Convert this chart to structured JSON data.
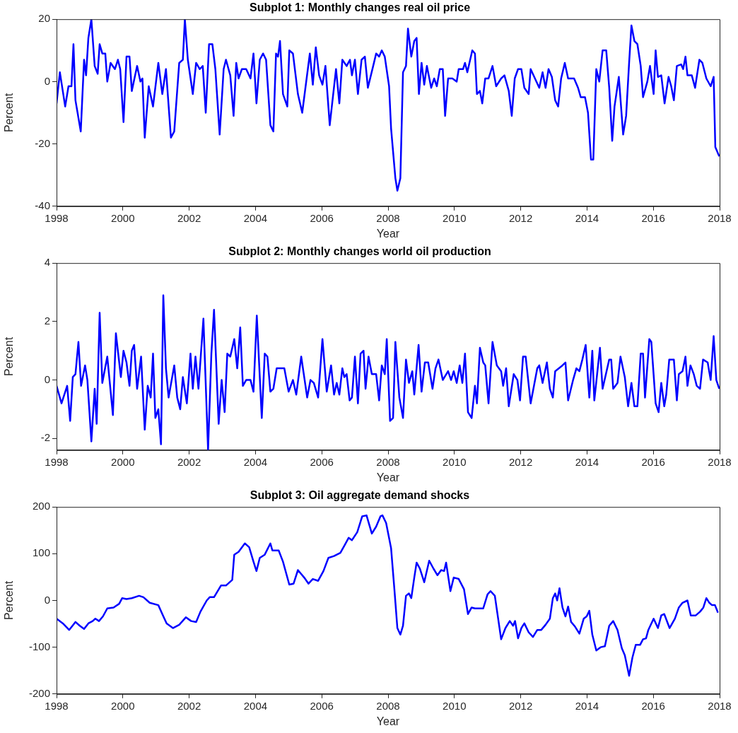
{
  "chart_data": [
    {
      "type": "line",
      "title": "Subplot 1: Monthly changes real oil price",
      "xlabel": "Year",
      "ylabel": "Percent",
      "color": "#0000ff",
      "xlim": [
        1998,
        2018
      ],
      "xticks": [
        1998,
        2000,
        2002,
        2004,
        2006,
        2008,
        2010,
        2012,
        2014,
        2016,
        2018
      ],
      "ylim": [
        -40,
        20
      ],
      "yticks": [
        -40,
        -20,
        0,
        20
      ],
      "x": [
        1998.0,
        1998.1,
        1998.26,
        1998.36,
        1998.45,
        1998.51,
        1998.57,
        1998.73,
        1998.83,
        1998.89,
        1998.96,
        1999.05,
        1999.15,
        1999.24,
        1999.3,
        1999.38,
        1999.47,
        1999.53,
        1999.63,
        1999.76,
        1999.85,
        1999.92,
        2000.02,
        2000.11,
        2000.2,
        2000.27,
        2000.43,
        2000.53,
        2000.59,
        2000.66,
        2000.78,
        2000.91,
        2001.07,
        2001.19,
        2001.3,
        2001.45,
        2001.55,
        2001.7,
        2001.81,
        2001.87,
        2001.96,
        2002.11,
        2002.21,
        2002.32,
        2002.41,
        2002.5,
        2002.6,
        2002.7,
        2002.79,
        2002.92,
        2003.04,
        2003.11,
        2003.24,
        2003.34,
        2003.42,
        2003.49,
        2003.59,
        2003.72,
        2003.85,
        2003.94,
        2004.03,
        2004.13,
        2004.23,
        2004.32,
        2004.45,
        2004.54,
        2004.62,
        2004.68,
        2004.74,
        2004.83,
        2004.96,
        2005.02,
        2005.13,
        2005.28,
        2005.41,
        2005.64,
        2005.73,
        2005.82,
        2005.92,
        2006.02,
        2006.11,
        2006.24,
        2006.43,
        2006.53,
        2006.62,
        2006.75,
        2006.85,
        2006.91,
        2007.0,
        2007.09,
        2007.2,
        2007.3,
        2007.39,
        2007.55,
        2007.64,
        2007.73,
        2007.81,
        2007.9,
        2008.03,
        2008.09,
        2008.22,
        2008.28,
        2008.37,
        2008.45,
        2008.54,
        2008.6,
        2008.7,
        2008.79,
        2008.86,
        2008.93,
        2009.01,
        2009.09,
        2009.17,
        2009.3,
        2009.39,
        2009.47,
        2009.56,
        2009.65,
        2009.72,
        2009.81,
        2009.94,
        2010.07,
        2010.13,
        2010.26,
        2010.32,
        2010.39,
        2010.54,
        2010.62,
        2010.68,
        2010.77,
        2010.84,
        2010.93,
        2011.03,
        2011.15,
        2011.26,
        2011.41,
        2011.51,
        2011.64,
        2011.73,
        2011.82,
        2011.92,
        2012.02,
        2012.11,
        2012.24,
        2012.3,
        2012.43,
        2012.56,
        2012.66,
        2012.75,
        2012.84,
        2012.94,
        2013.04,
        2013.13,
        2013.22,
        2013.33,
        2013.43,
        2013.61,
        2013.73,
        2013.81,
        2013.94,
        2014.03,
        2014.12,
        2014.19,
        2014.28,
        2014.37,
        2014.47,
        2014.58,
        2014.67,
        2014.76,
        2014.83,
        2014.96,
        2015.09,
        2015.18,
        2015.27,
        2015.34,
        2015.43,
        2015.52,
        2015.62,
        2015.69,
        2015.82,
        2015.9,
        2016.01,
        2016.07,
        2016.14,
        2016.24,
        2016.34,
        2016.46,
        2016.54,
        2016.62,
        2016.71,
        2016.84,
        2016.9,
        2016.97,
        2017.03,
        2017.16,
        2017.26,
        2017.31,
        2017.39,
        2017.48,
        2017.6,
        2017.73,
        2017.82,
        2017.87,
        2017.99
      ],
      "values": [
        -7,
        3,
        -8,
        -1.5,
        -1.5,
        12,
        -6,
        -16,
        7,
        2,
        14,
        20,
        5,
        2.5,
        12,
        9,
        9,
        0,
        6,
        4,
        7,
        4,
        -13,
        8,
        8,
        -3,
        5,
        0,
        1,
        -18,
        -1.5,
        -8,
        6,
        -4,
        4,
        -18,
        -16,
        6,
        7,
        20,
        7,
        -4,
        6,
        4,
        5,
        -10,
        12,
        12,
        4,
        -17,
        4,
        7,
        2,
        -11,
        6,
        1,
        4,
        4,
        1,
        9,
        -7,
        7,
        9,
        7,
        -14,
        -16,
        9,
        8,
        13,
        -4,
        -8,
        10,
        9,
        -4,
        -10,
        9,
        -1,
        11,
        2,
        -1,
        5,
        -14,
        4,
        -7,
        7,
        5,
        7,
        2,
        7,
        -4,
        7,
        8,
        -2,
        5,
        9,
        8,
        10,
        8,
        -1.5,
        -15,
        -31,
        -35,
        -31,
        3,
        5,
        17,
        8,
        13,
        14,
        -4,
        6,
        -1,
        5,
        -2,
        1,
        -1.5,
        4,
        4,
        -11,
        1,
        1,
        0,
        4,
        4,
        6,
        3,
        10,
        9,
        -4,
        -3,
        -7,
        1,
        1,
        5,
        -1.5,
        1,
        2,
        -3,
        -11,
        1,
        4,
        4,
        -2,
        -4,
        4,
        1,
        -2,
        3,
        -2,
        4,
        1.5,
        -6,
        -8,
        1,
        6,
        1,
        1,
        -2,
        -5,
        -5,
        -10,
        -25,
        -25,
        4,
        0,
        10,
        10,
        -2,
        -19,
        -8,
        1.5,
        -17,
        -11,
        6,
        18,
        13,
        12,
        5,
        -5,
        0,
        5,
        -4,
        10,
        1.5,
        2,
        -7,
        1.5,
        -1.5,
        -6,
        5,
        5.5,
        4,
        8,
        2,
        2,
        -2,
        1.5,
        7,
        6,
        1,
        -1.5,
        1.5,
        -21,
        -24
      ]
    },
    {
      "type": "line",
      "title": "Subplot 2: Monthly changes world oil production",
      "xlabel": "Year",
      "ylabel": "Percent",
      "color": "#0000ff",
      "xlim": [
        1998,
        2018
      ],
      "xticks": [
        1998,
        2000,
        2002,
        2004,
        2006,
        2008,
        2010,
        2012,
        2014,
        2016,
        2018
      ],
      "ylim": [
        -2.4,
        4
      ],
      "yticks": [
        -2,
        0,
        2,
        4
      ],
      "x": [
        1998.0,
        1998.15,
        1998.32,
        1998.41,
        1998.49,
        1998.57,
        1998.66,
        1998.74,
        1998.86,
        1998.93,
        1999.05,
        1999.15,
        1999.21,
        1999.3,
        1999.38,
        1999.53,
        1999.7,
        1999.79,
        1999.94,
        2000.02,
        2000.11,
        2000.2,
        2000.27,
        2000.34,
        2000.43,
        2000.55,
        2000.66,
        2000.75,
        2000.84,
        2000.91,
        2000.98,
        2001.07,
        2001.15,
        2001.22,
        2001.3,
        2001.38,
        2001.55,
        2001.64,
        2001.73,
        2001.81,
        2001.93,
        2002.04,
        2002.11,
        2002.19,
        2002.28,
        2002.43,
        2002.57,
        2002.67,
        2002.75,
        2002.89,
        2002.98,
        2003.07,
        2003.15,
        2003.24,
        2003.36,
        2003.45,
        2003.54,
        2003.62,
        2003.72,
        2003.85,
        2003.94,
        2004.04,
        2004.19,
        2004.28,
        2004.36,
        2004.45,
        2004.54,
        2004.64,
        2004.87,
        2005.0,
        2005.13,
        2005.23,
        2005.38,
        2005.56,
        2005.66,
        2005.76,
        2005.89,
        2006.02,
        2006.15,
        2006.28,
        2006.37,
        2006.45,
        2006.53,
        2006.62,
        2006.68,
        2006.75,
        2006.84,
        2006.91,
        2007.0,
        2007.09,
        2007.17,
        2007.26,
        2007.32,
        2007.41,
        2007.51,
        2007.64,
        2007.73,
        2007.81,
        2007.9,
        2007.96,
        2008.06,
        2008.15,
        2008.22,
        2008.34,
        2008.45,
        2008.54,
        2008.63,
        2008.73,
        2008.79,
        2008.92,
        2009.01,
        2009.11,
        2009.21,
        2009.34,
        2009.43,
        2009.52,
        2009.65,
        2009.81,
        2009.9,
        2009.98,
        2010.07,
        2010.16,
        2010.24,
        2010.32,
        2010.41,
        2010.52,
        2010.62,
        2010.68,
        2010.77,
        2010.87,
        2010.93,
        2011.03,
        2011.15,
        2011.28,
        2011.41,
        2011.47,
        2011.56,
        2011.64,
        2011.79,
        2011.9,
        2011.98,
        2012.07,
        2012.15,
        2012.3,
        2012.5,
        2012.56,
        2012.66,
        2012.79,
        2012.88,
        2012.97,
        2013.04,
        2013.26,
        2013.35,
        2013.43,
        2013.58,
        2013.68,
        2013.77,
        2013.86,
        2013.96,
        2014.07,
        2014.16,
        2014.22,
        2014.39,
        2014.47,
        2014.67,
        2014.73,
        2014.79,
        2014.92,
        2015.01,
        2015.14,
        2015.24,
        2015.34,
        2015.43,
        2015.52,
        2015.62,
        2015.69,
        2015.75,
        2015.88,
        2015.94,
        2016.07,
        2016.16,
        2016.24,
        2016.33,
        2016.39,
        2016.48,
        2016.62,
        2016.71,
        2016.77,
        2016.88,
        2016.97,
        2017.03,
        2017.12,
        2017.22,
        2017.31,
        2017.41,
        2017.5,
        2017.64,
        2017.73,
        2017.82,
        2017.9,
        2017.99
      ],
      "values": [
        -0.2,
        -0.8,
        -0.2,
        -1.4,
        0.1,
        0.2,
        1.3,
        -0.2,
        0.5,
        0,
        -2.1,
        -0.3,
        -1.5,
        2.3,
        -0.1,
        0.8,
        -1.2,
        1.6,
        0.1,
        1,
        0.6,
        -0.2,
        1,
        1.2,
        -0.3,
        0.8,
        -1.7,
        -0.2,
        -0.6,
        0.9,
        -1.3,
        -1,
        -2.2,
        2.9,
        0.4,
        -0.6,
        0.5,
        -0.6,
        -1,
        0.1,
        -0.8,
        0.9,
        -0.3,
        0.8,
        -0.3,
        2.1,
        -2.4,
        0.9,
        2.4,
        -1.5,
        0,
        -1.1,
        0.9,
        0.8,
        1.4,
        0.4,
        1.8,
        -0.2,
        0,
        0,
        -0.4,
        2.2,
        -1.3,
        0.9,
        0.8,
        -0.4,
        -0.3,
        0.4,
        0.4,
        -0.4,
        0,
        -0.5,
        0.8,
        -0.6,
        0,
        -0.1,
        -0.6,
        1.4,
        -0.4,
        0.5,
        -0.5,
        -0.1,
        -0.5,
        0.4,
        0.1,
        0.2,
        -0.7,
        -0.6,
        0.8,
        -0.8,
        0.9,
        1,
        -0.3,
        0.8,
        0.2,
        0.2,
        -0.7,
        0.5,
        0.2,
        1.4,
        -1.4,
        -1.3,
        1.3,
        -0.6,
        -1.3,
        0.7,
        -0.1,
        0.3,
        -0.5,
        1.2,
        -0.4,
        0.6,
        0.6,
        -0.3,
        0.4,
        0.7,
        0,
        0.3,
        0,
        0.3,
        -0.1,
        0.5,
        -0.1,
        0.9,
        -1.1,
        -1.3,
        -0.2,
        -0.8,
        1.1,
        0.6,
        0.5,
        -0.8,
        1.3,
        0.5,
        0.3,
        -0.2,
        0.4,
        -0.9,
        0.2,
        0,
        -0.7,
        0.8,
        0.8,
        -0.8,
        0.4,
        0.5,
        -0.1,
        0.6,
        -0.3,
        -0.6,
        0.3,
        0.5,
        0.6,
        -0.7,
        0,
        0.4,
        0.3,
        0.7,
        1.2,
        -0.6,
        1,
        -0.7,
        1.1,
        -0.3,
        0.7,
        0.7,
        -0.3,
        -0.1,
        0.8,
        0.1,
        -0.9,
        -0.1,
        -0.9,
        -0.9,
        0.9,
        0.9,
        -0.6,
        1.4,
        1.3,
        -0.8,
        -1.1,
        -0.1,
        -0.9,
        -0.5,
        0.7,
        0.7,
        -0.7,
        0.2,
        0.3,
        0.8,
        -0.2,
        0.5,
        0.2,
        -0.2,
        -0.3,
        0.7,
        0.6,
        0,
        1.5,
        0,
        -0.3
      ]
    },
    {
      "type": "line",
      "title": "Subplot 3: Oil aggregate demand shocks",
      "xlabel": "Year",
      "ylabel": "Percent",
      "color": "#0000ff",
      "xlim": [
        1998,
        2018
      ],
      "xticks": [
        1998,
        2000,
        2002,
        2004,
        2006,
        2008,
        2010,
        2012,
        2014,
        2016,
        2018
      ],
      "ylim": [
        -200,
        200
      ],
      "yticks": [
        -200,
        -100,
        0,
        100,
        200
      ],
      "x": [
        1998.0,
        1998.19,
        1998.38,
        1998.57,
        1998.7,
        1998.83,
        1998.96,
        1999.09,
        1999.17,
        1999.28,
        1999.4,
        1999.53,
        1999.72,
        1999.89,
        1999.98,
        2000.11,
        2000.27,
        2000.49,
        2000.62,
        2000.81,
        2001.07,
        2001.19,
        2001.32,
        2001.51,
        2001.7,
        2001.9,
        2002.06,
        2002.21,
        2002.34,
        2002.53,
        2002.62,
        2002.75,
        2002.96,
        2003.11,
        2003.3,
        2003.36,
        2003.49,
        2003.68,
        2003.81,
        2003.94,
        2004.03,
        2004.13,
        2004.28,
        2004.45,
        2004.51,
        2004.7,
        2004.83,
        2005.02,
        2005.15,
        2005.28,
        2005.47,
        2005.6,
        2005.73,
        2005.89,
        2006.05,
        2006.2,
        2006.37,
        2006.56,
        2006.68,
        2006.81,
        2006.91,
        2007.07,
        2007.22,
        2007.35,
        2007.51,
        2007.64,
        2007.77,
        2007.83,
        2007.94,
        2008.09,
        2008.19,
        2008.28,
        2008.37,
        2008.45,
        2008.54,
        2008.63,
        2008.7,
        2008.79,
        2008.86,
        2008.96,
        2009.09,
        2009.24,
        2009.37,
        2009.49,
        2009.6,
        2009.69,
        2009.75,
        2009.88,
        2009.98,
        2010.13,
        2010.29,
        2010.41,
        2010.52,
        2010.62,
        2010.75,
        2010.87,
        2011.0,
        2011.09,
        2011.22,
        2011.41,
        2011.54,
        2011.67,
        2011.77,
        2011.83,
        2011.92,
        2012.02,
        2012.11,
        2012.24,
        2012.37,
        2012.5,
        2012.62,
        2012.75,
        2012.88,
        2012.97,
        2013.04,
        2013.1,
        2013.17,
        2013.26,
        2013.35,
        2013.43,
        2013.52,
        2013.64,
        2013.77,
        2013.9,
        2013.99,
        2014.07,
        2014.16,
        2014.28,
        2014.41,
        2014.54,
        2014.67,
        2014.79,
        2014.92,
        2015.05,
        2015.14,
        2015.27,
        2015.37,
        2015.47,
        2015.6,
        2015.69,
        2015.78,
        2015.85,
        2016.01,
        2016.14,
        2016.24,
        2016.33,
        2016.49,
        2016.65,
        2016.77,
        2016.88,
        2017.03,
        2017.13,
        2017.28,
        2017.41,
        2017.51,
        2017.6,
        2017.69,
        2017.77,
        2017.86,
        2017.95
      ],
      "values": [
        -39,
        -49,
        -63,
        -46,
        -54,
        -61,
        -49,
        -44,
        -39,
        -44,
        -34,
        -17,
        -15,
        -7,
        5,
        3,
        5,
        10,
        7,
        -5,
        -10,
        -29,
        -49,
        -59,
        -52,
        -36,
        -44,
        -46,
        -24,
        0,
        7,
        7,
        32,
        32,
        44,
        98,
        104,
        122,
        114,
        83,
        63,
        91,
        98,
        122,
        107,
        107,
        83,
        34,
        36,
        65,
        49,
        36,
        46,
        42,
        63,
        91,
        95,
        102,
        117,
        134,
        129,
        146,
        180,
        182,
        143,
        158,
        180,
        182,
        166,
        112,
        24,
        -59,
        -73,
        -54,
        10,
        15,
        5,
        49,
        81,
        68,
        39,
        85,
        68,
        54,
        65,
        63,
        81,
        20,
        49,
        46,
        24,
        -29,
        -15,
        -17,
        -17,
        -17,
        13,
        20,
        10,
        -83,
        -59,
        -44,
        -54,
        -44,
        -81,
        -59,
        -49,
        -68,
        -78,
        -63,
        -63,
        -52,
        -39,
        5,
        15,
        0,
        26,
        -15,
        -34,
        -13,
        -46,
        -56,
        -71,
        -39,
        -34,
        -22,
        -73,
        -107,
        -100,
        -98,
        -54,
        -44,
        -63,
        -102,
        -117,
        -161,
        -122,
        -95,
        -95,
        -83,
        -81,
        -63,
        -39,
        -59,
        -32,
        -29,
        -59,
        -39,
        -15,
        -5,
        0,
        -32,
        -32,
        -24,
        -15,
        5,
        -5,
        -10,
        -10,
        -26
      ]
    }
  ]
}
